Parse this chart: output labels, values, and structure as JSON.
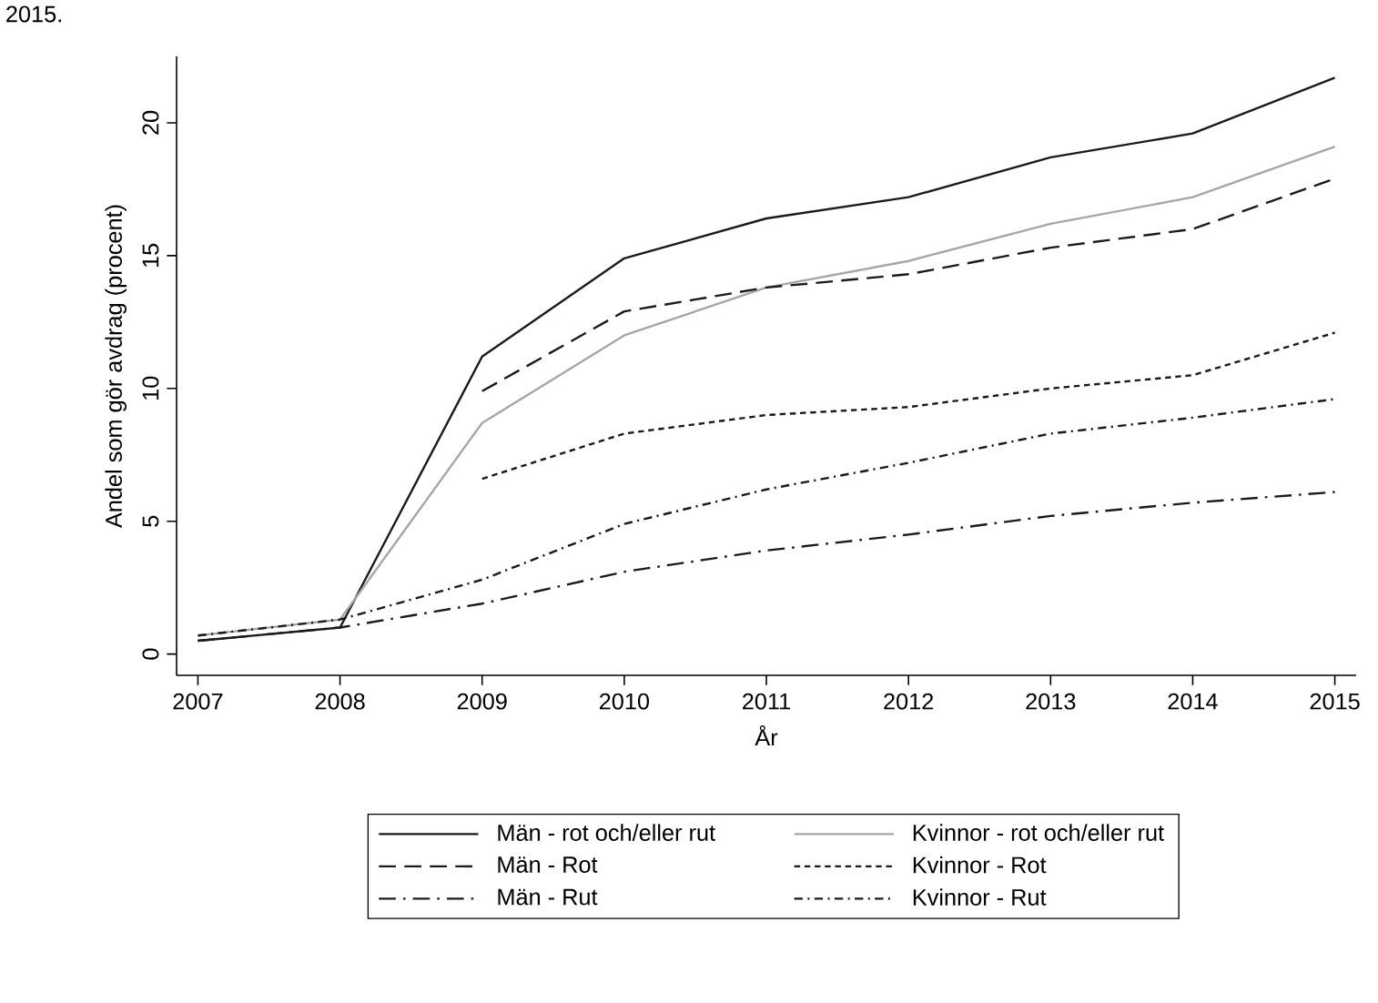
{
  "chart_data": {
    "type": "line",
    "x": [
      2007,
      2008,
      2009,
      2010,
      2011,
      2012,
      2013,
      2014,
      2015
    ],
    "xlim": [
      2006.85,
      2015.15
    ],
    "xticks": [
      2007,
      2008,
      2009,
      2010,
      2011,
      2012,
      2013,
      2014,
      2015
    ],
    "ylim": [
      -0.8,
      22.5
    ],
    "yticks": [
      0,
      5,
      10,
      15,
      20
    ],
    "xlabel": "År",
    "ylabel": "Andel som gör avdrag (procent)",
    "annotations": [
      "2015."
    ],
    "legend": "bottom",
    "grid": false,
    "marker": "none",
    "series": [
      {
        "name": "Män - rot och/eller rut",
        "color": "#1a1a1a",
        "line_style": "solid",
        "values": [
          0.5,
          1.0,
          11.2,
          14.9,
          16.4,
          17.2,
          18.7,
          19.6,
          21.7
        ]
      },
      {
        "name": "Kvinnor - rot och/eller rut",
        "color": "#a6a6a6",
        "line_style": "solid",
        "values": [
          0.7,
          1.3,
          8.7,
          12.0,
          13.8,
          14.8,
          16.2,
          17.2,
          19.1
        ]
      },
      {
        "name": "Män - Rot",
        "color": "#1a1a1a",
        "line_style": "dashed",
        "values": [
          null,
          null,
          9.9,
          12.9,
          13.8,
          14.3,
          15.3,
          16.0,
          17.9
        ]
      },
      {
        "name": "Kvinnor - Rot",
        "color": "#1a1a1a",
        "line_style": "dotted",
        "values": [
          null,
          null,
          6.6,
          8.3,
          9.0,
          9.3,
          10.0,
          10.5,
          12.1
        ]
      },
      {
        "name": "Män - Rut",
        "color": "#1a1a1a",
        "line_style": "dashdot",
        "values": [
          0.5,
          1.0,
          1.9,
          3.1,
          3.9,
          4.5,
          5.2,
          5.7,
          6.1
        ]
      },
      {
        "name": "Kvinnor - Rut",
        "color": "#1a1a1a",
        "line_style": "dashdotdot",
        "values": [
          0.7,
          1.3,
          2.8,
          4.9,
          6.2,
          7.2,
          8.3,
          8.9,
          9.6
        ]
      }
    ]
  }
}
